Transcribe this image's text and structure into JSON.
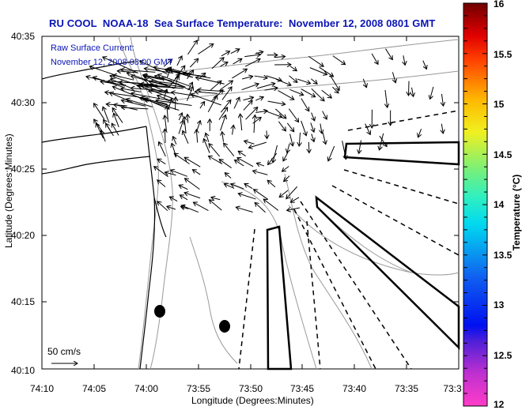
{
  "title": "RU COOL  NOAA-18  Sea Surface Temperature:  November 12, 2008 0801 GMT",
  "annotations": {
    "line1": "Raw Surface Current:",
    "line2": "November 12, 2008 08:00 GMT"
  },
  "scale_label": "50 cm/s",
  "axes": {
    "xlabel": "Longitude (Degrees:Minutes)",
    "ylabel": "Latitude (Degrees:Minutes)",
    "xticks": [
      "74:10",
      "74:05",
      "74:00",
      "73:55",
      "73:50",
      "73:45",
      "73:40",
      "73:35",
      "73:3"
    ],
    "yticks": [
      "40:35",
      "40:30",
      "40:25",
      "40:20",
      "40:15",
      "40:10"
    ]
  },
  "colorbar": {
    "label": "Temperature (°C)",
    "ticks": [
      "16",
      "15.5",
      "15",
      "14.5",
      "14",
      "13.5",
      "13",
      "12.5",
      "12"
    ],
    "min": 12,
    "max": 16,
    "colors": [
      "#ff40c8",
      "#8020d0",
      "#0010f0",
      "#1070f0",
      "#00e8f0",
      "#60f090",
      "#f0f020",
      "#ffa000",
      "#ff2000",
      "#800000"
    ]
  }
}
